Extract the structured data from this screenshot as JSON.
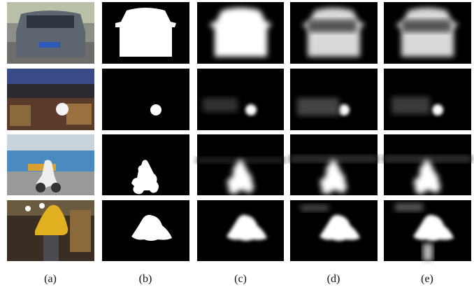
{
  "labels": [
    "(a)",
    "(b)",
    "(c)",
    "(d)",
    "(e)"
  ]
}
